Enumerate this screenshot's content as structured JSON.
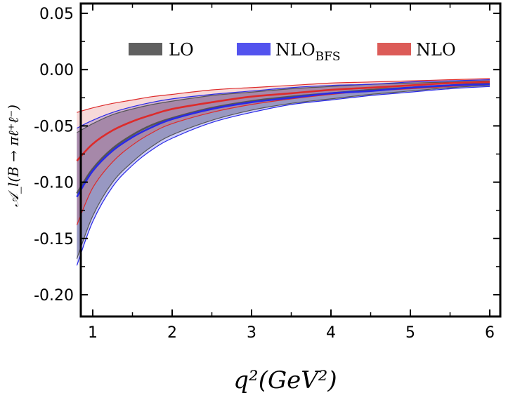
{
  "chart_data": {
    "type": "area",
    "xlabel": "q²(GeV²)",
    "ylabel": "𝒜_l(B → πℓ⁺ℓ⁻)",
    "xlim": [
      0.8,
      6.1
    ],
    "ylim": [
      -0.215,
      0.055
    ],
    "x_ticks": [
      1,
      2,
      3,
      4,
      5,
      6
    ],
    "y_ticks": [
      0.05,
      0.0,
      -0.05,
      -0.1,
      -0.15,
      -0.2
    ],
    "y_tick_labels": [
      "0.05",
      "0.00",
      "-0.05",
      "-0.10",
      "-0.15",
      "-0.20"
    ],
    "x": [
      0.8,
      1.0,
      1.25,
      1.5,
      1.75,
      2.0,
      2.5,
      3.0,
      3.5,
      4.0,
      4.5,
      5.0,
      5.5,
      6.0
    ],
    "series": [
      {
        "name": "LO",
        "color": "#555555",
        "fill": "rgba(40,40,40,0.35)",
        "central": [
          -0.11,
          -0.088,
          -0.07,
          -0.058,
          -0.049,
          -0.043,
          -0.034,
          -0.028,
          -0.024,
          -0.021,
          -0.018,
          -0.016,
          -0.014,
          -0.012
        ],
        "upper": [
          -0.056,
          -0.048,
          -0.04,
          -0.035,
          -0.031,
          -0.028,
          -0.023,
          -0.02,
          -0.017,
          -0.015,
          -0.013,
          -0.012,
          -0.011,
          -0.01
        ],
        "lower": [
          -0.168,
          -0.13,
          -0.1,
          -0.082,
          -0.068,
          -0.058,
          -0.045,
          -0.036,
          -0.03,
          -0.026,
          -0.022,
          -0.019,
          -0.016,
          -0.014
        ]
      },
      {
        "name": "NLO_BFS",
        "color": "#2a2ae6",
        "fill": "rgba(80,80,230,0.28)",
        "central": [
          -0.113,
          -0.09,
          -0.072,
          -0.06,
          -0.051,
          -0.044,
          -0.035,
          -0.029,
          -0.025,
          -0.021,
          -0.019,
          -0.016,
          -0.014,
          -0.013
        ],
        "upper": [
          -0.052,
          -0.045,
          -0.038,
          -0.033,
          -0.029,
          -0.026,
          -0.022,
          -0.019,
          -0.016,
          -0.014,
          -0.013,
          -0.011,
          -0.01,
          -0.009
        ],
        "lower": [
          -0.174,
          -0.135,
          -0.104,
          -0.085,
          -0.071,
          -0.061,
          -0.047,
          -0.038,
          -0.031,
          -0.027,
          -0.023,
          -0.02,
          -0.017,
          -0.015
        ]
      },
      {
        "name": "NLO",
        "color": "#dd2b2b",
        "fill": "rgba(220,80,80,0.22)",
        "central": [
          -0.081,
          -0.066,
          -0.054,
          -0.046,
          -0.04,
          -0.035,
          -0.029,
          -0.024,
          -0.021,
          -0.018,
          -0.016,
          -0.014,
          -0.012,
          -0.011
        ],
        "upper": [
          -0.038,
          -0.034,
          -0.03,
          -0.027,
          -0.024,
          -0.022,
          -0.018,
          -0.016,
          -0.014,
          -0.012,
          -0.011,
          -0.01,
          -0.009,
          -0.008
        ],
        "lower": [
          -0.138,
          -0.105,
          -0.082,
          -0.067,
          -0.056,
          -0.048,
          -0.038,
          -0.031,
          -0.026,
          -0.022,
          -0.019,
          -0.017,
          -0.015,
          -0.013
        ]
      }
    ],
    "legend": {
      "position": "top",
      "entries": [
        {
          "label": "LO",
          "color": "#606060"
        },
        {
          "label_main": "NLO",
          "label_sub": "BFS",
          "color": "#5353ee"
        },
        {
          "label": "NLO",
          "color": "#dc5c58"
        }
      ]
    },
    "grid": false
  }
}
